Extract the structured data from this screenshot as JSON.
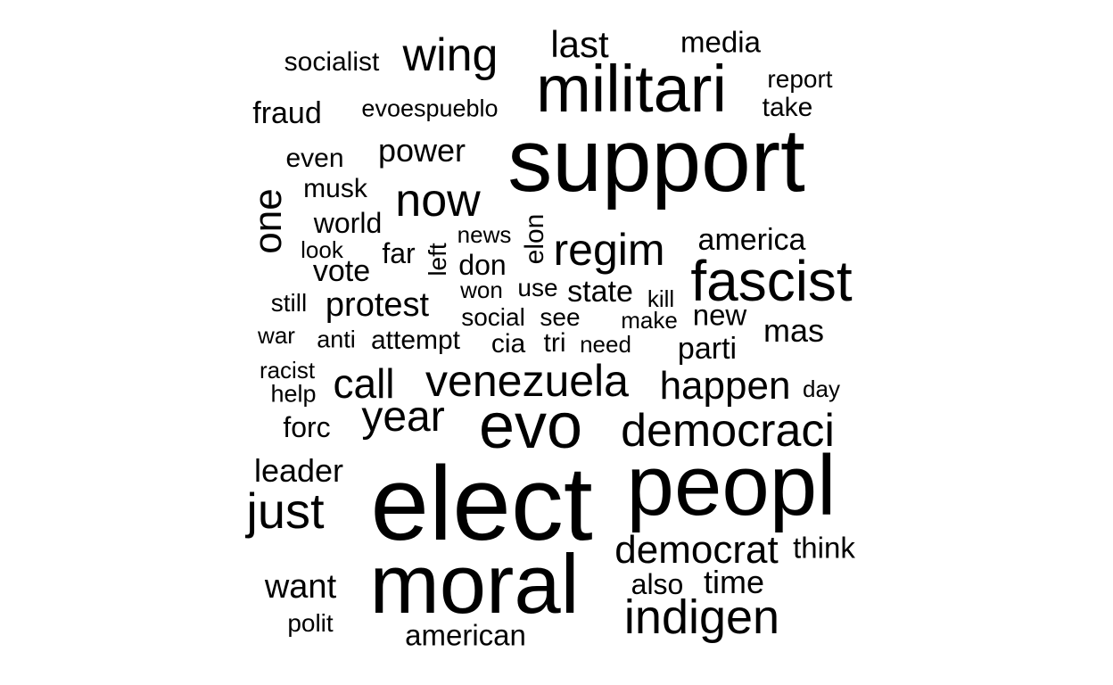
{
  "colors": {
    "background": "#ffffff",
    "text": "#000000"
  },
  "word_cloud": {
    "words": [
      {
        "text": "elect",
        "orientation": "horizontal"
      },
      {
        "text": "support",
        "orientation": "horizontal"
      },
      {
        "text": "peopl",
        "orientation": "horizontal"
      },
      {
        "text": "moral",
        "orientation": "horizontal"
      },
      {
        "text": "evo",
        "orientation": "horizontal"
      },
      {
        "text": "militari",
        "orientation": "horizontal"
      },
      {
        "text": "fascist",
        "orientation": "horizontal"
      },
      {
        "text": "indigen",
        "orientation": "horizontal"
      },
      {
        "text": "democraci",
        "orientation": "horizontal"
      },
      {
        "text": "venezuela",
        "orientation": "horizontal"
      },
      {
        "text": "regim",
        "orientation": "horizontal"
      },
      {
        "text": "just",
        "orientation": "horizontal"
      },
      {
        "text": "democrat",
        "orientation": "horizontal"
      },
      {
        "text": "now",
        "orientation": "horizontal"
      },
      {
        "text": "year",
        "orientation": "horizontal"
      },
      {
        "text": "happen",
        "orientation": "horizontal"
      },
      {
        "text": "wing",
        "orientation": "horizontal"
      },
      {
        "text": "call",
        "orientation": "horizontal"
      },
      {
        "text": "last",
        "orientation": "horizontal"
      },
      {
        "text": "want",
        "orientation": "horizontal"
      },
      {
        "text": "leader",
        "orientation": "horizontal"
      },
      {
        "text": "protest",
        "orientation": "horizontal"
      },
      {
        "text": "time",
        "orientation": "horizontal"
      },
      {
        "text": "power",
        "orientation": "horizontal"
      },
      {
        "text": "america",
        "orientation": "horizontal"
      },
      {
        "text": "american",
        "orientation": "horizontal"
      },
      {
        "text": "media",
        "orientation": "horizontal"
      },
      {
        "text": "one",
        "orientation": "vertical"
      },
      {
        "text": "mas",
        "orientation": "horizontal"
      },
      {
        "text": "new",
        "orientation": "horizontal"
      },
      {
        "text": "think",
        "orientation": "horizontal"
      },
      {
        "text": "parti",
        "orientation": "horizontal"
      },
      {
        "text": "state",
        "orientation": "horizontal"
      },
      {
        "text": "fraud",
        "orientation": "horizontal"
      },
      {
        "text": "vote",
        "orientation": "horizontal"
      },
      {
        "text": "world",
        "orientation": "horizontal"
      },
      {
        "text": "also",
        "orientation": "horizontal"
      },
      {
        "text": "socialist",
        "orientation": "horizontal"
      },
      {
        "text": "attempt",
        "orientation": "horizontal"
      },
      {
        "text": "report",
        "orientation": "horizontal"
      },
      {
        "text": "take",
        "orientation": "horizontal"
      },
      {
        "text": "forc",
        "orientation": "horizontal"
      },
      {
        "text": "far",
        "orientation": "horizontal"
      },
      {
        "text": "don",
        "orientation": "horizontal"
      },
      {
        "text": "even",
        "orientation": "horizontal"
      },
      {
        "text": "musk",
        "orientation": "horizontal"
      },
      {
        "text": "evoespueblo",
        "orientation": "horizontal"
      },
      {
        "text": "elon",
        "orientation": "vertical"
      },
      {
        "text": "polit",
        "orientation": "horizontal"
      },
      {
        "text": "use",
        "orientation": "horizontal"
      },
      {
        "text": "still",
        "orientation": "horizontal"
      },
      {
        "text": "social",
        "orientation": "horizontal"
      },
      {
        "text": "see",
        "orientation": "horizontal"
      },
      {
        "text": "cia",
        "orientation": "horizontal"
      },
      {
        "text": "tri",
        "orientation": "horizontal"
      },
      {
        "text": "need",
        "orientation": "horizontal"
      },
      {
        "text": "racist",
        "orientation": "horizontal"
      },
      {
        "text": "news",
        "orientation": "horizontal"
      },
      {
        "text": "left",
        "orientation": "vertical"
      },
      {
        "text": "war",
        "orientation": "horizontal"
      },
      {
        "text": "anti",
        "orientation": "horizontal"
      },
      {
        "text": "help",
        "orientation": "horizontal"
      },
      {
        "text": "day",
        "orientation": "horizontal"
      },
      {
        "text": "won",
        "orientation": "horizontal"
      },
      {
        "text": "look",
        "orientation": "horizontal"
      },
      {
        "text": "kill",
        "orientation": "horizontal"
      },
      {
        "text": "make",
        "orientation": "horizontal"
      }
    ]
  }
}
